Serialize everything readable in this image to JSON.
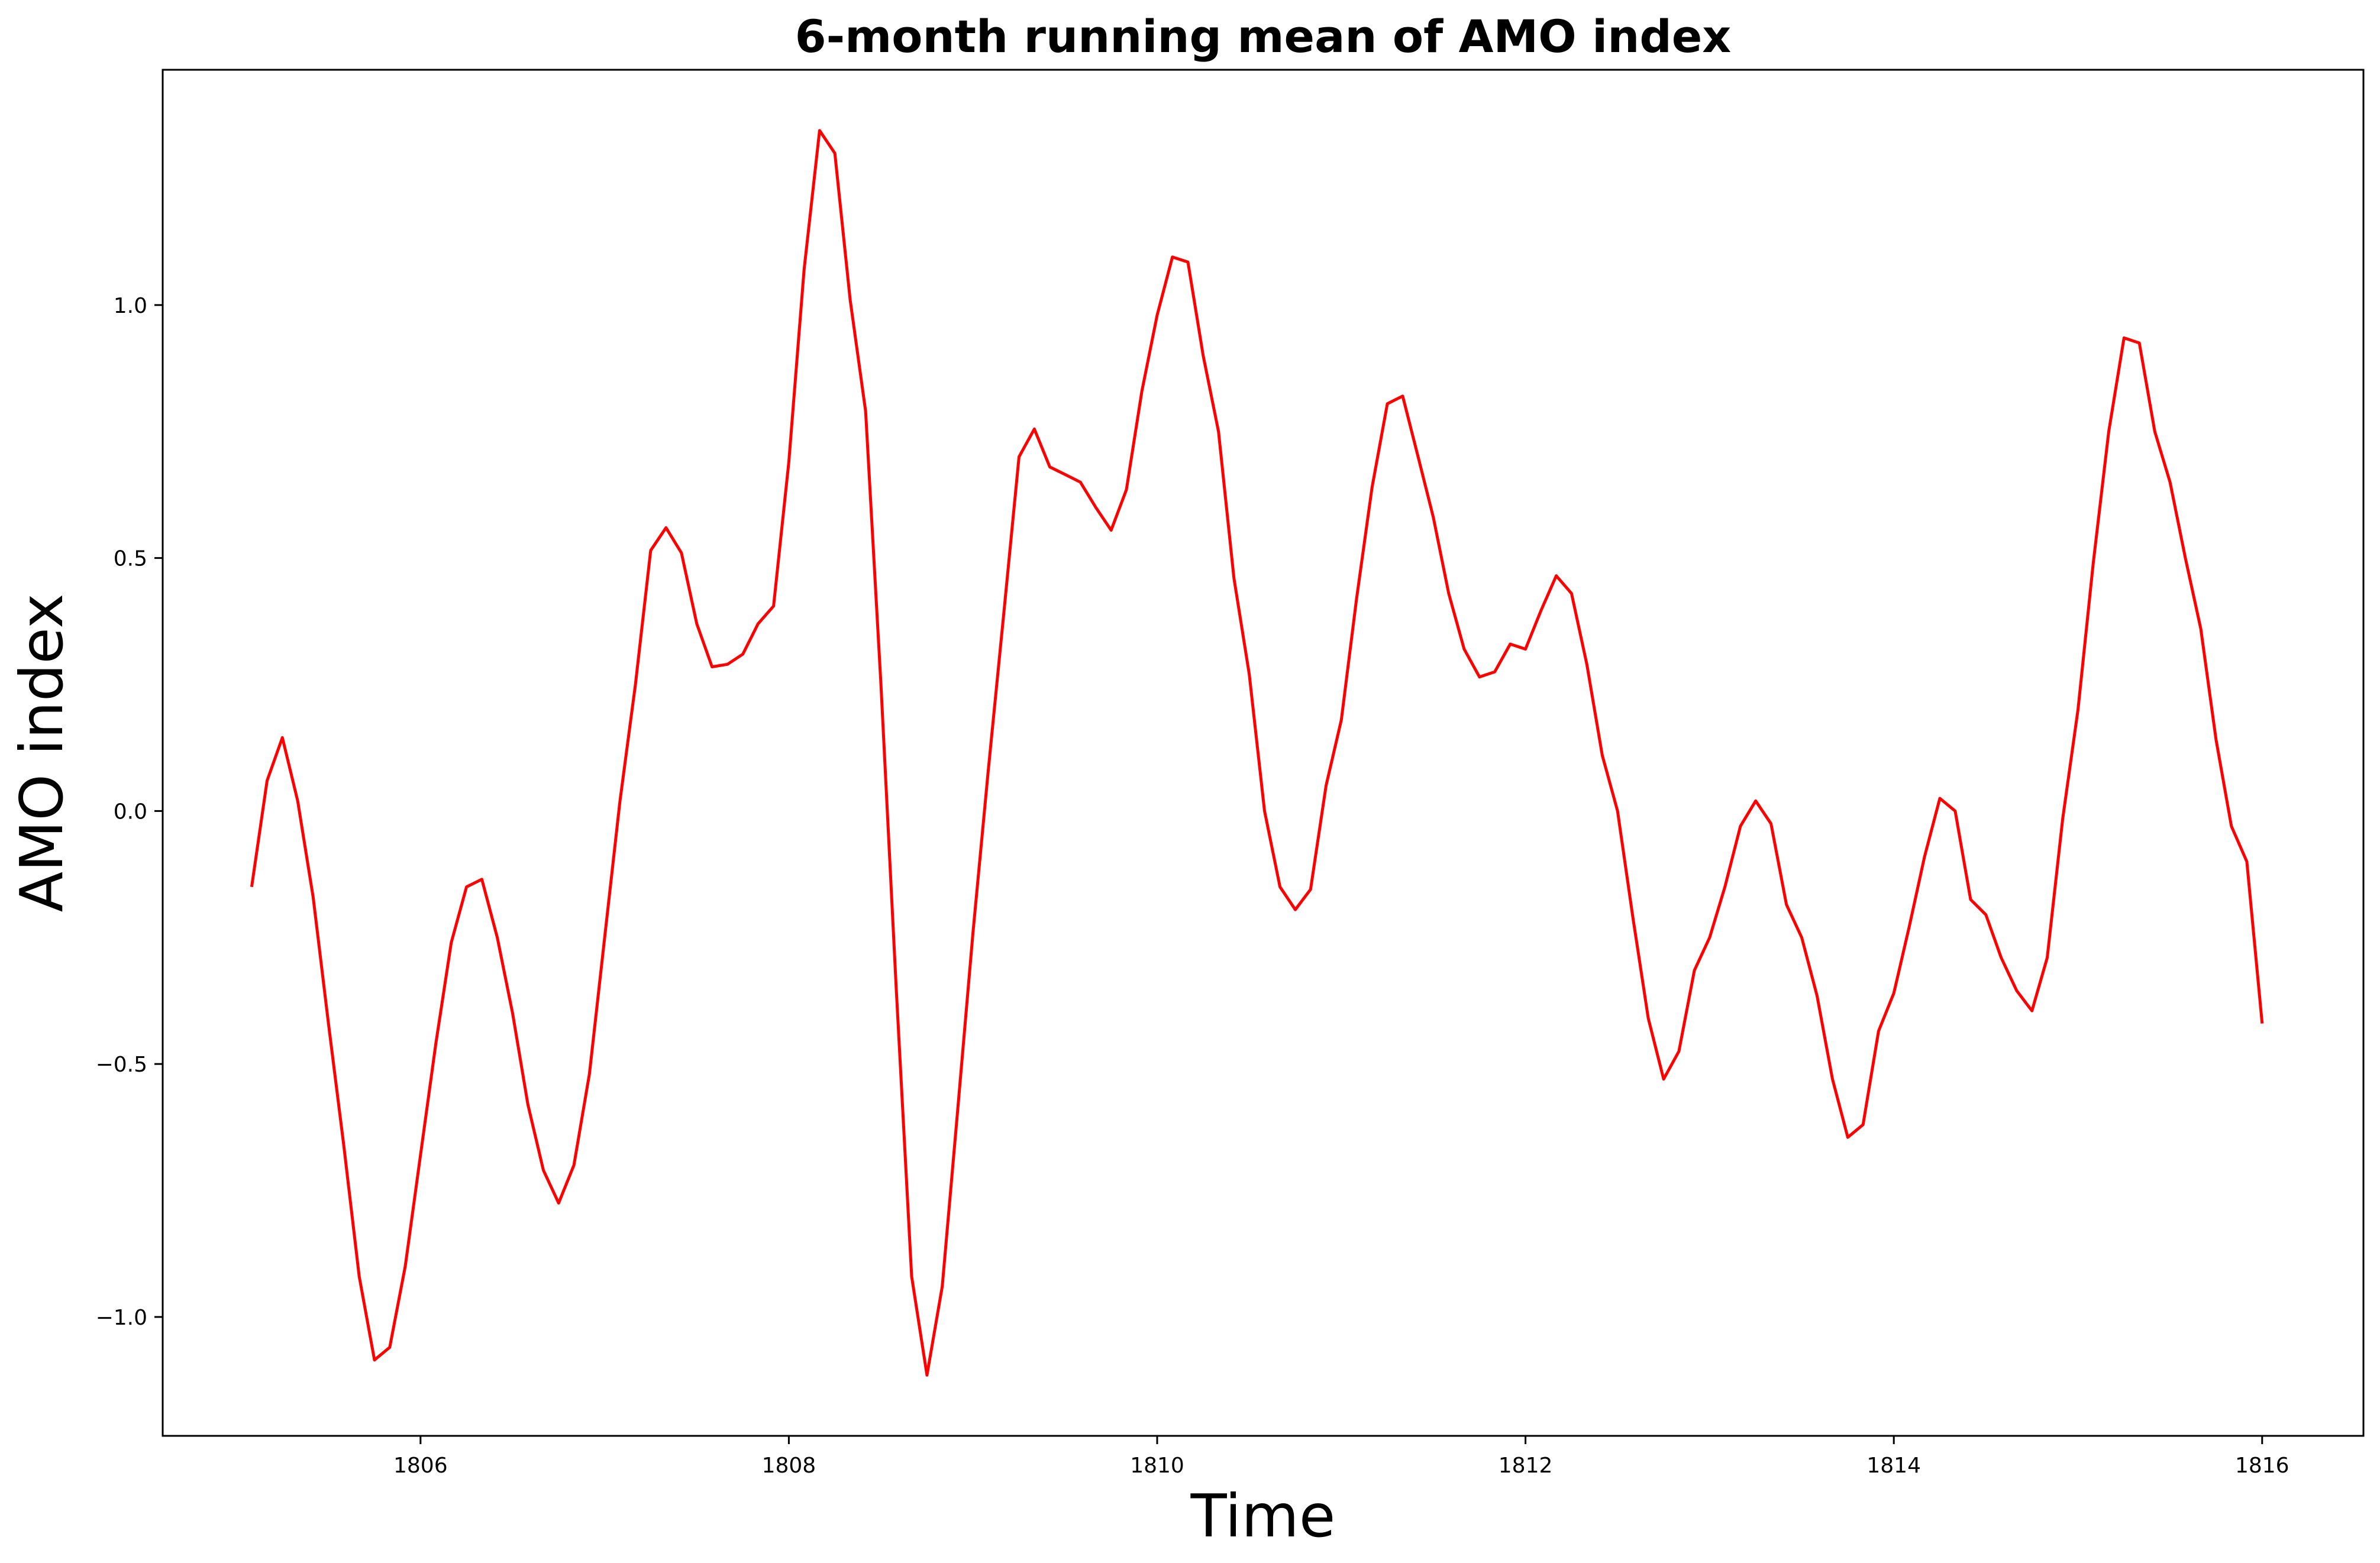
{
  "chart_data": {
    "type": "line",
    "title": "6-month running mean of AMO index",
    "xlabel": "Time",
    "ylabel": "AMO index",
    "xlim": [
      1804.6,
      1816.55
    ],
    "ylim": [
      -1.235,
      1.465
    ],
    "xticks": [
      1806,
      1808,
      1810,
      1812,
      1814,
      1816
    ],
    "xtick_labels": [
      "1806",
      "1808",
      "1810",
      "1812",
      "1814",
      "1816"
    ],
    "yticks": [
      -1.0,
      -0.5,
      0.0,
      0.5,
      1.0
    ],
    "ytick_labels": [
      "−1.0",
      "−0.5",
      "0.0",
      "0.5",
      "1.0"
    ],
    "grid": false,
    "color": "#ff0000",
    "series": [
      {
        "x": [
          1805.083,
          1805.167,
          1805.25,
          1805.333,
          1805.417,
          1805.5,
          1805.583,
          1805.667,
          1805.75,
          1805.833,
          1805.917,
          1806.0,
          1806.083,
          1806.167,
          1806.25,
          1806.333,
          1806.417,
          1806.5,
          1806.583,
          1806.667,
          1806.75,
          1806.833,
          1806.917,
          1807.0,
          1807.083,
          1807.167,
          1807.25,
          1807.333,
          1807.417,
          1807.5,
          1807.583,
          1807.667,
          1807.75,
          1807.833,
          1807.917,
          1808.0,
          1808.083,
          1808.167,
          1808.25,
          1808.333,
          1808.417,
          1808.5,
          1808.583,
          1808.667,
          1808.75,
          1808.833,
          1808.917,
          1809.0,
          1809.083,
          1809.167,
          1809.25,
          1809.333,
          1809.417,
          1809.5,
          1809.583,
          1809.667,
          1809.75,
          1809.833,
          1809.917,
          1810.0,
          1810.083,
          1810.167,
          1810.25,
          1810.333,
          1810.417,
          1810.5,
          1810.583,
          1810.667,
          1810.75,
          1810.833,
          1810.917,
          1811.0,
          1811.083,
          1811.167,
          1811.25,
          1811.333,
          1811.417,
          1811.5,
          1811.583,
          1811.667,
          1811.75,
          1811.833,
          1811.917,
          1812.0,
          1812.083,
          1812.167,
          1812.25,
          1812.333,
          1812.417,
          1812.5,
          1812.583,
          1812.667,
          1812.75,
          1812.833,
          1812.917,
          1813.0,
          1813.083,
          1813.167,
          1813.25,
          1813.333,
          1813.417,
          1813.5,
          1813.583,
          1813.667,
          1813.75,
          1813.833,
          1813.917,
          1814.0,
          1814.083,
          1814.167,
          1814.25,
          1814.333,
          1814.417,
          1814.5,
          1814.583,
          1814.667,
          1814.75,
          1814.833,
          1814.917,
          1815.0,
          1815.083,
          1815.167,
          1815.25,
          1815.333,
          1815.417,
          1815.5,
          1815.583,
          1815.667,
          1815.75,
          1815.833,
          1815.917,
          1816.0
        ],
        "y": [
          -0.15,
          0.06,
          0.145,
          0.02,
          -0.17,
          -0.42,
          -0.66,
          -0.92,
          -1.085,
          -1.06,
          -0.9,
          -0.68,
          -0.46,
          -0.26,
          -0.15,
          -0.135,
          -0.25,
          -0.4,
          -0.58,
          -0.71,
          -0.775,
          -0.7,
          -0.52,
          -0.25,
          0.02,
          0.25,
          0.515,
          0.56,
          0.51,
          0.37,
          0.285,
          0.29,
          0.31,
          0.37,
          0.405,
          0.69,
          1.07,
          1.345,
          1.3,
          1.01,
          0.79,
          0.25,
          -0.35,
          -0.92,
          -1.115,
          -0.94,
          -0.59,
          -0.24,
          0.08,
          0.39,
          0.7,
          0.755,
          0.68,
          0.665,
          0.65,
          0.6,
          0.555,
          0.635,
          0.83,
          0.98,
          1.095,
          1.085,
          0.9,
          0.75,
          0.46,
          0.27,
          0.0,
          -0.15,
          -0.195,
          -0.155,
          0.05,
          0.18,
          0.42,
          0.64,
          0.805,
          0.82,
          0.7,
          0.58,
          0.43,
          0.32,
          0.265,
          0.275,
          0.33,
          0.32,
          0.395,
          0.465,
          0.43,
          0.29,
          0.11,
          0.0,
          -0.21,
          -0.41,
          -0.53,
          -0.475,
          -0.315,
          -0.25,
          -0.15,
          -0.03,
          0.02,
          -0.025,
          -0.185,
          -0.25,
          -0.365,
          -0.53,
          -0.645,
          -0.62,
          -0.435,
          -0.36,
          -0.23,
          -0.09,
          0.025,
          0.0,
          -0.175,
          -0.205,
          -0.29,
          -0.355,
          -0.395,
          -0.29,
          -0.015,
          0.2,
          0.49,
          0.75,
          0.935,
          0.925,
          0.75,
          0.65,
          0.5,
          0.36,
          0.14,
          -0.03,
          -0.1,
          -0.42
        ]
      }
    ]
  }
}
